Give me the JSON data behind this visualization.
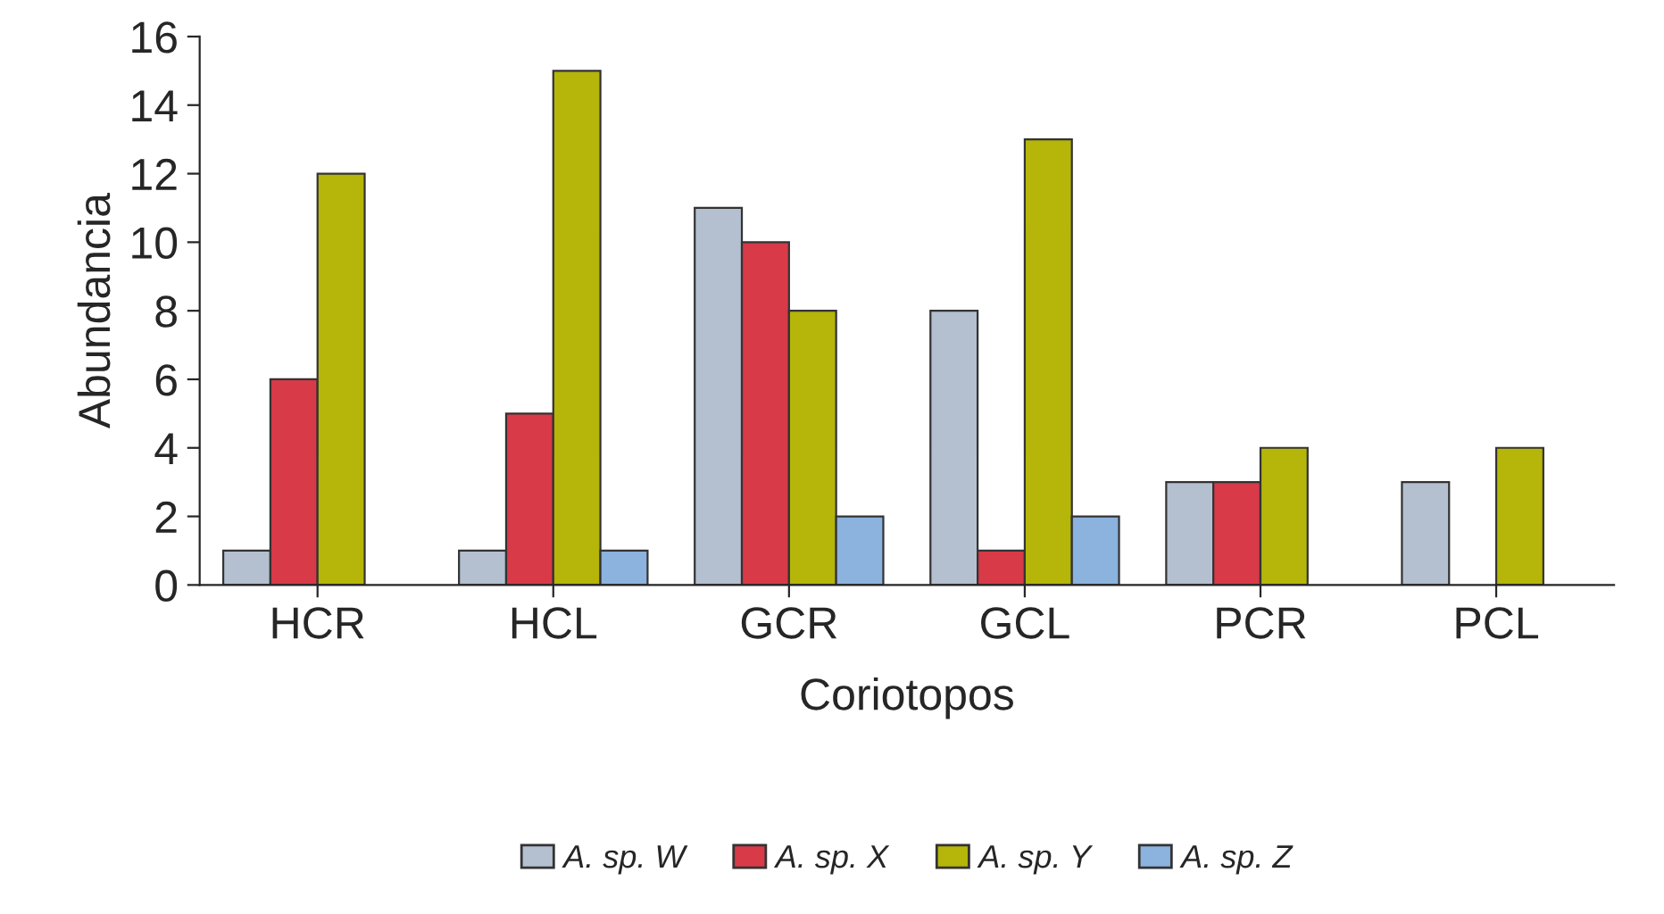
{
  "chart_data": {
    "type": "bar",
    "xlabel": "Coriotopos",
    "ylabel": "Abundancia",
    "categories": [
      "HCR",
      "HCL",
      "GCR",
      "GCL",
      "PCR",
      "PCL"
    ],
    "series": [
      {
        "name": "A. sp. W",
        "color": "#b4c0d0",
        "values": [
          1,
          1,
          11,
          8,
          3,
          3
        ]
      },
      {
        "name": "A. sp. X",
        "color": "#d83a48",
        "values": [
          6,
          5,
          10,
          1,
          3,
          null
        ]
      },
      {
        "name": "A. sp. Y",
        "color": "#b5b50a",
        "values": [
          12,
          15,
          8,
          13,
          4,
          4
        ]
      },
      {
        "name": "A. sp. Z",
        "color": "#8cb2de",
        "values": [
          null,
          1,
          2,
          2,
          null,
          null
        ]
      }
    ],
    "ylim": [
      0,
      16
    ],
    "yticks": [
      0,
      2,
      4,
      6,
      8,
      10,
      12,
      14,
      16
    ],
    "grid": false,
    "legend": "bottom"
  }
}
